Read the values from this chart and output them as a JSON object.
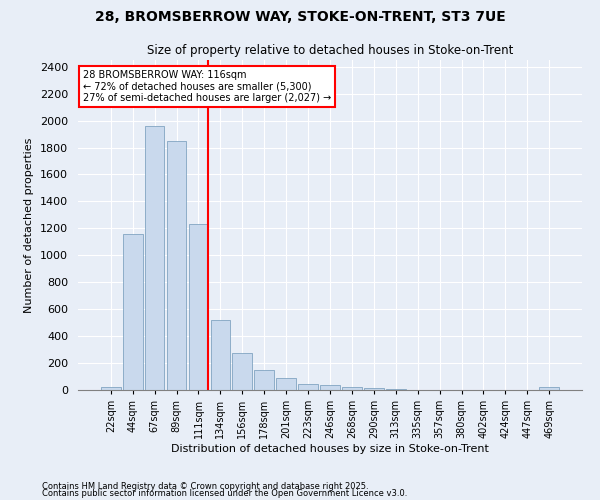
{
  "title1": "28, BROMSBERROW WAY, STOKE-ON-TRENT, ST3 7UE",
  "title2": "Size of property relative to detached houses in Stoke-on-Trent",
  "xlabel": "Distribution of detached houses by size in Stoke-on-Trent",
  "ylabel": "Number of detached properties",
  "categories": [
    "22sqm",
    "44sqm",
    "67sqm",
    "89sqm",
    "111sqm",
    "134sqm",
    "156sqm",
    "178sqm",
    "201sqm",
    "223sqm",
    "246sqm",
    "268sqm",
    "290sqm",
    "313sqm",
    "335sqm",
    "357sqm",
    "380sqm",
    "402sqm",
    "424sqm",
    "447sqm",
    "469sqm"
  ],
  "values": [
    25,
    1160,
    1960,
    1850,
    1230,
    520,
    275,
    150,
    90,
    45,
    40,
    20,
    15,
    5,
    3,
    2,
    2,
    2,
    1,
    1,
    20
  ],
  "bar_color": "#c9d9ed",
  "bar_edge_color": "#7098b8",
  "red_line_x": 4.45,
  "annotation_text": "28 BROMSBERROW WAY: 116sqm\n← 72% of detached houses are smaller (5,300)\n27% of semi-detached houses are larger (2,027) →",
  "annotation_box_color": "white",
  "annotation_box_edge_color": "red",
  "ylim": [
    0,
    2450
  ],
  "yticks": [
    0,
    200,
    400,
    600,
    800,
    1000,
    1200,
    1400,
    1600,
    1800,
    2000,
    2200,
    2400
  ],
  "background_color": "#e8eef7",
  "grid_color": "white",
  "footer1": "Contains HM Land Registry data © Crown copyright and database right 2025.",
  "footer2": "Contains public sector information licensed under the Open Government Licence v3.0."
}
